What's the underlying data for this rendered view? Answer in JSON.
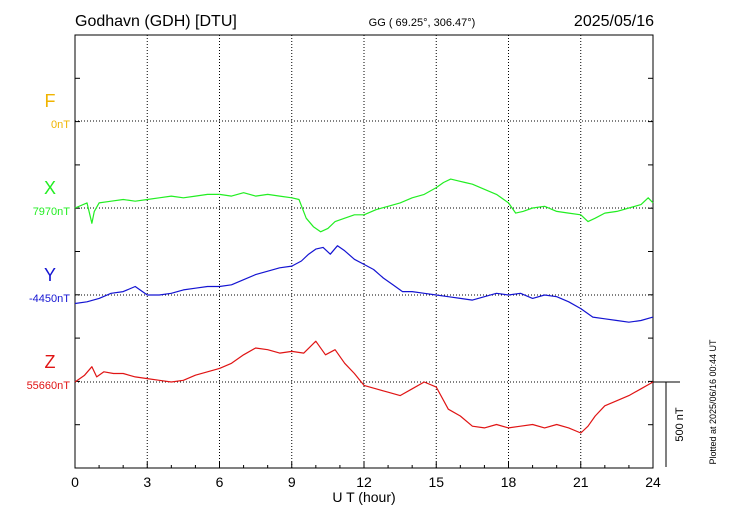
{
  "header": {
    "station": "Godhavn (GDH)  [DTU]",
    "coords": "GG ( 69.25°, 306.47°)",
    "date": "2025/05/16"
  },
  "footer": {
    "plotted": "Plotted at 2025/06/16 00:44 UT"
  },
  "chart_data": {
    "type": "line",
    "xlabel": "U T (hour)",
    "xlim": [
      0,
      24
    ],
    "xticks": [
      0,
      3,
      6,
      9,
      12,
      15,
      18,
      21,
      24
    ],
    "scale_bar": {
      "value": 500,
      "label": "500 nT"
    },
    "colors": {
      "F": "#f0b400",
      "X": "#22ee22",
      "Y": "#1414d2",
      "Z": "#e01414"
    },
    "series": [
      {
        "name": "F",
        "baseline_label": "0nT",
        "x": [],
        "values": []
      },
      {
        "name": "X",
        "baseline_label": "7970nT",
        "x": [
          0,
          0.5,
          0.7,
          0.8,
          1,
          1.5,
          2,
          2.5,
          3,
          3.5,
          4,
          4.5,
          5,
          5.5,
          6,
          6.5,
          7,
          7.5,
          8,
          8.5,
          9,
          9.3,
          9.6,
          9.9,
          10.2,
          10.5,
          10.8,
          11.2,
          11.6,
          12,
          12.5,
          13,
          13.5,
          14,
          14.5,
          15,
          15.3,
          15.6,
          15.9,
          16.2,
          16.5,
          17,
          17.5,
          18,
          18.3,
          18.6,
          19,
          19.5,
          20,
          20.5,
          21,
          21.3,
          21.6,
          22,
          22.5,
          23,
          23.5,
          23.8,
          24
        ],
        "values": [
          0,
          30,
          -90,
          -20,
          30,
          40,
          50,
          40,
          50,
          60,
          70,
          60,
          70,
          80,
          80,
          70,
          90,
          70,
          80,
          70,
          60,
          50,
          -60,
          -110,
          -140,
          -120,
          -80,
          -60,
          -40,
          -40,
          -10,
          10,
          30,
          60,
          80,
          120,
          150,
          170,
          160,
          150,
          140,
          110,
          80,
          30,
          -30,
          -20,
          0,
          10,
          -20,
          -30,
          -40,
          -80,
          -60,
          -30,
          -20,
          0,
          20,
          60,
          30
        ]
      },
      {
        "name": "Y",
        "baseline_label": "-4450nT",
        "x": [
          0,
          0.5,
          1,
          1.5,
          2,
          2.5,
          3,
          3.5,
          4,
          4.5,
          5,
          5.5,
          6,
          6.5,
          7,
          7.5,
          8,
          8.5,
          9,
          9.4,
          9.7,
          10,
          10.3,
          10.6,
          10.9,
          11.2,
          11.6,
          12,
          12.4,
          12.8,
          13.2,
          13.6,
          14,
          14.5,
          15,
          15.5,
          16,
          16.5,
          17,
          17.5,
          18,
          18.5,
          19,
          19.5,
          20,
          20.5,
          21,
          21.5,
          22,
          22.5,
          23,
          23.5,
          24
        ],
        "values": [
          -50,
          -40,
          -20,
          10,
          20,
          50,
          0,
          0,
          10,
          30,
          40,
          50,
          50,
          60,
          90,
          120,
          140,
          160,
          170,
          200,
          240,
          270,
          280,
          240,
          290,
          260,
          210,
          180,
          150,
          100,
          60,
          20,
          20,
          10,
          0,
          -10,
          -20,
          -30,
          -10,
          10,
          0,
          10,
          -20,
          0,
          -10,
          -40,
          -80,
          -130,
          -140,
          -150,
          -160,
          -150,
          -130
        ]
      },
      {
        "name": "Z",
        "baseline_label": "55660nT",
        "x": [
          0,
          0.4,
          0.7,
          0.9,
          1.2,
          1.6,
          2,
          2.5,
          3,
          3.5,
          4,
          4.5,
          5,
          5.5,
          6,
          6.5,
          7,
          7.5,
          8,
          8.5,
          9,
          9.5,
          10,
          10.4,
          10.8,
          11.2,
          11.6,
          12,
          12.5,
          13,
          13.5,
          14,
          14.5,
          15,
          15.5,
          16,
          16.5,
          17,
          17.5,
          18,
          18.5,
          19,
          19.5,
          20,
          20.5,
          21,
          21.3,
          21.6,
          22,
          22.5,
          23,
          23.5,
          24
        ],
        "values": [
          0,
          40,
          90,
          30,
          60,
          50,
          50,
          30,
          20,
          10,
          0,
          10,
          40,
          60,
          80,
          110,
          160,
          200,
          190,
          170,
          180,
          170,
          240,
          160,
          190,
          110,
          50,
          -20,
          -40,
          -60,
          -80,
          -40,
          0,
          -30,
          -160,
          -200,
          -260,
          -270,
          -250,
          -270,
          -260,
          -250,
          -270,
          -250,
          -270,
          -300,
          -260,
          -200,
          -140,
          -110,
          -80,
          -40,
          0
        ]
      }
    ]
  }
}
